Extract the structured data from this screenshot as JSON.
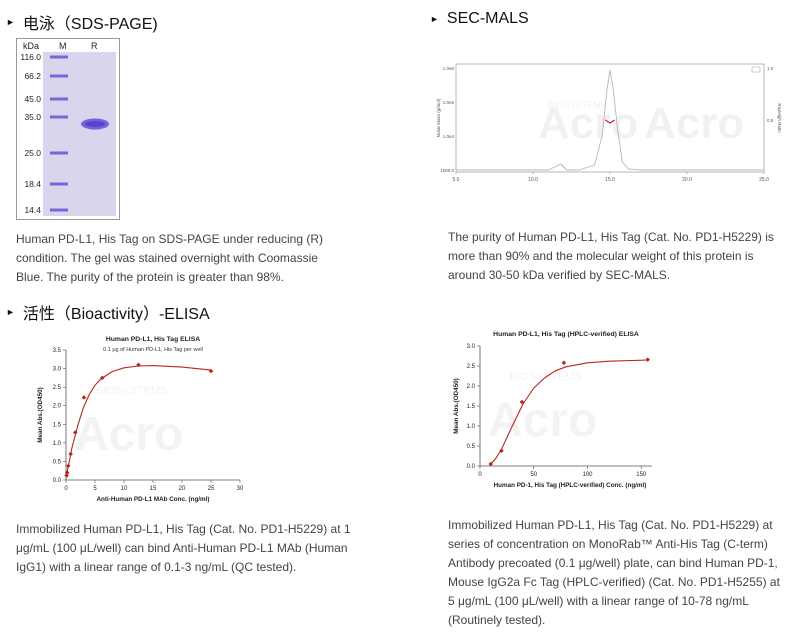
{
  "sections": {
    "sds": {
      "title": "电泳（SDS-PAGE)",
      "caption": "Human PD-L1, His Tag on SDS-PAGE under reducing (R) condition. The gel was stained overnight with Coomassie Blue. The purity of the protein is greater than 98%.",
      "gel": {
        "header_kda": "kDa",
        "lane_m": "M",
        "lane_r": "R",
        "markers": [
          "116.0",
          "66.2",
          "45.0",
          "35.0",
          "25.0",
          "18.4",
          "14.4"
        ],
        "band_color": "#6c4fd8"
      }
    },
    "secmals": {
      "title": "SEC-MALS",
      "caption": "The purity of Human PD-L1, His Tag (Cat. No. PD1-H5229) is more than 90% and the molecular weight of this protein is around 30-50 kDa verified by SEC-MALS."
    },
    "bioactivity": {
      "title": "活性（Bioactivity）-ELISA",
      "caption_left": "Immobilized Human PD-L1, His Tag (Cat. No. PD1-H5229) at 1 μg/mL (100 μL/well) can bind Anti-Human PD-L1 MAb (Human IgG1) with a linear range of 0.1-3 ng/mL (QC tested).",
      "caption_right": "Immobilized Human PD-L1, His Tag (Cat. No. PD1-H5229) at series of concentration on MonoRab™ Anti-His Tag (C-term) Antibody precoated (0.1 μg/well) plate, can bind Human PD-1, Mouse IgG2a Fc Tag (HPLC-verified) (Cat. No. PD1-H5255) at 5 μg/mL (100 μL/well) with a linear range of 10-78 ng/mL (Routinely tested)."
    }
  },
  "chart_data": [
    {
      "type": "line",
      "id": "secmals",
      "title": "",
      "xlabel": "",
      "ylabel": "Molar Mass (g/mol)",
      "y2label": "Rayleigh Ratio",
      "x_ticks": [
        "5.0",
        "10.0",
        "15.0",
        "20.0",
        "25.0"
      ],
      "y_ticks": [
        "1000.0",
        "1.0e4",
        "1.0e5",
        "1.0e6"
      ],
      "y2_ticks": [
        "0.5",
        "1.0"
      ],
      "xlim": [
        5,
        25
      ],
      "series": [
        {
          "name": "signal",
          "color": "#b7b7b7",
          "x": [
            5,
            11.0,
            11.8,
            12.2,
            13.0,
            14.0,
            14.5,
            14.8,
            15.0,
            15.2,
            15.5,
            15.8,
            16.2,
            17,
            25
          ],
          "y": [
            0.0,
            0.0,
            0.06,
            0.0,
            0.0,
            0.05,
            0.35,
            0.8,
            1.0,
            0.82,
            0.4,
            0.08,
            0.01,
            0.0,
            0.0
          ]
        },
        {
          "name": "molar mass",
          "color": "#d22020",
          "x": [
            14.7,
            15.0,
            15.3
          ],
          "y": [
            0.5,
            0.47,
            0.5
          ]
        }
      ],
      "watermark": "Acro",
      "watermark_sub": "BIOSYSTEMS"
    },
    {
      "type": "line",
      "id": "elisa1",
      "title": "Human PD-L1, His Tag ELISA",
      "subtitle": "0.1 μg of Human PD-L1, His Tag per well",
      "xlabel": "Anti-Human PD-L1 MAb Conc. (ng/ml)",
      "ylabel": "Mean Abs.(OD450)",
      "xlim": [
        0,
        30
      ],
      "ylim": [
        0,
        3.5
      ],
      "x_ticks": [
        0,
        5,
        10,
        15,
        20,
        25,
        30
      ],
      "y_ticks": [
        0.0,
        0.5,
        1.0,
        1.5,
        2.0,
        2.5,
        3.0,
        3.5
      ],
      "points": {
        "x": [
          0.1,
          0.2,
          0.4,
          0.8,
          1.6,
          3.1,
          6.25,
          12.5,
          25
        ],
        "y": [
          0.12,
          0.2,
          0.38,
          0.7,
          1.28,
          2.22,
          2.75,
          3.1,
          2.93
        ]
      },
      "curve": {
        "x": [
          0,
          0.5,
          1,
          2,
          3,
          4,
          5,
          6,
          8,
          10,
          12.5,
          15,
          20,
          25
        ],
        "y": [
          0.08,
          0.45,
          0.85,
          1.45,
          1.95,
          2.3,
          2.55,
          2.72,
          2.92,
          3.02,
          3.07,
          3.08,
          3.04,
          2.96
        ]
      },
      "color": "#b4281e",
      "watermark": "Acro",
      "watermark_sub": "BIOSYSTEMS"
    },
    {
      "type": "line",
      "id": "elisa2",
      "title": "Human PD-L1, His Tag (HPLC-verified) ELISA",
      "xlabel": "Human PD-1, His Tag (HPLC-verified) Conc. (ng/ml)",
      "ylabel": "Mean Abs.(OD450)",
      "xlim": [
        0,
        160
      ],
      "ylim": [
        0,
        3.0
      ],
      "x_ticks": [
        0,
        50,
        100,
        150
      ],
      "y_ticks": [
        0.0,
        0.5,
        1.0,
        1.5,
        2.0,
        2.5,
        3.0
      ],
      "points": {
        "x": [
          10,
          20,
          39,
          78,
          156
        ],
        "y": [
          0.05,
          0.38,
          1.6,
          2.58,
          2.66
        ]
      },
      "curve": {
        "x": [
          10,
          15,
          20,
          30,
          40,
          50,
          60,
          70,
          80,
          100,
          120,
          156
        ],
        "y": [
          0.05,
          0.2,
          0.42,
          1.0,
          1.55,
          1.95,
          2.2,
          2.38,
          2.48,
          2.58,
          2.62,
          2.65
        ]
      },
      "color": "#b4281e",
      "watermark": "Acro",
      "watermark_sub": "BIOSYSTEMS"
    }
  ]
}
